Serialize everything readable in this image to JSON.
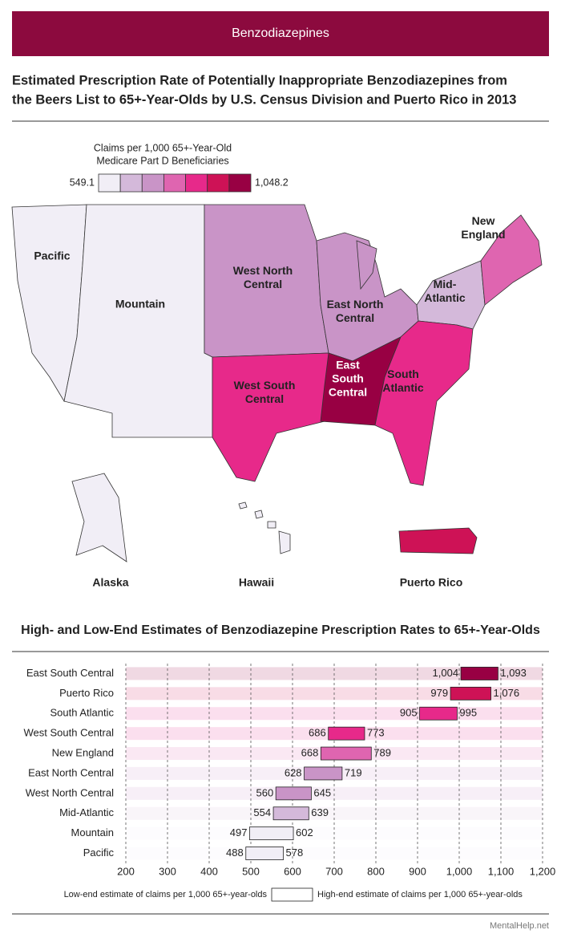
{
  "header": "Benzodiazepines",
  "title": [
    "Estimated Prescription Rate of Potentially Inappropriate Benzodiazepines from",
    "the Beers List to 65+-Year-Olds by U.S. Census Division and Puerto Rico in 2013"
  ],
  "map": {
    "legend_title": [
      "Claims per 1,000 65+-Year-Old",
      "Medicare Part D Beneficiaries"
    ],
    "legend_min": "549.1",
    "legend_max": "1,048.2",
    "legend_colors": [
      "#f1eef6",
      "#d4b9da",
      "#c994c7",
      "#df65b0",
      "#e7298a",
      "#ce1256",
      "#980043"
    ],
    "regions": [
      {
        "label": [
          "Pacific"
        ],
        "color": "#f1eef6"
      },
      {
        "label": [
          "Mountain"
        ],
        "color": "#f1eef6"
      },
      {
        "label": [
          "West North",
          "Central"
        ],
        "color": "#c994c7"
      },
      {
        "label": [
          "East North",
          "Central"
        ],
        "color": "#c994c7"
      },
      {
        "label": [
          "Mid-",
          "Atlantic"
        ],
        "color": "#d4b9da"
      },
      {
        "label": [
          "New",
          "England"
        ],
        "color": "#df65b0"
      },
      {
        "label": [
          "West South",
          "Central"
        ],
        "color": "#e7298a"
      },
      {
        "label": [
          "East",
          "South",
          "Central"
        ],
        "color": "#980043"
      },
      {
        "label": [
          "South",
          "Atlantic"
        ],
        "color": "#e7298a"
      },
      {
        "label": [
          "Alaska"
        ],
        "color": "#f1eef6"
      },
      {
        "label": [
          "Hawaii"
        ],
        "color": "#f1eef6"
      },
      {
        "label": [
          "Puerto Rico"
        ],
        "color": "#ce1256"
      }
    ]
  },
  "chart_data": {
    "type": "range_bar",
    "title": "High- and Low-End Estimates of Benzodiazepine Prescription Rates to 65+-Year-Olds",
    "categories": [
      "East South Central",
      "Puerto Rico",
      "South Atlantic",
      "West South Central",
      "New England",
      "East North Central",
      "West North Central",
      "Mid-Atlantic",
      "Mountain",
      "Pacific"
    ],
    "colors": [
      "#980043",
      "#ce1256",
      "#e7298a",
      "#e7298a",
      "#df65b0",
      "#c994c7",
      "#c994c7",
      "#d4b9da",
      "#f1eef6",
      "#f1eef6"
    ],
    "series": [
      {
        "name": "Low-end estimate of claims per 1,000 65+-year-olds",
        "values": [
          1004,
          979,
          905,
          686,
          668,
          628,
          560,
          554,
          497,
          488
        ],
        "value_labels": [
          "1,004",
          "979",
          "905",
          "686",
          "668",
          "628",
          "560",
          "554",
          "497",
          "488"
        ]
      },
      {
        "name": "High-end estimate of claims per 1,000 65+-year-olds",
        "values": [
          1093,
          1076,
          995,
          773,
          789,
          719,
          645,
          639,
          602,
          578
        ],
        "value_labels": [
          "1,093",
          "1,076",
          "995",
          "773",
          "789",
          "719",
          "645",
          "639",
          "602",
          "578"
        ]
      }
    ],
    "xlim": [
      200,
      1200
    ],
    "xticks": [
      200,
      300,
      400,
      500,
      600,
      700,
      800,
      900,
      {
        "value": 1000,
        "label": "1,000"
      },
      {
        "value": 1100,
        "label": "1,100"
      },
      {
        "value": 1200,
        "label": "1,200"
      }
    ],
    "grid": true
  },
  "footer": "MentalHelp.net"
}
